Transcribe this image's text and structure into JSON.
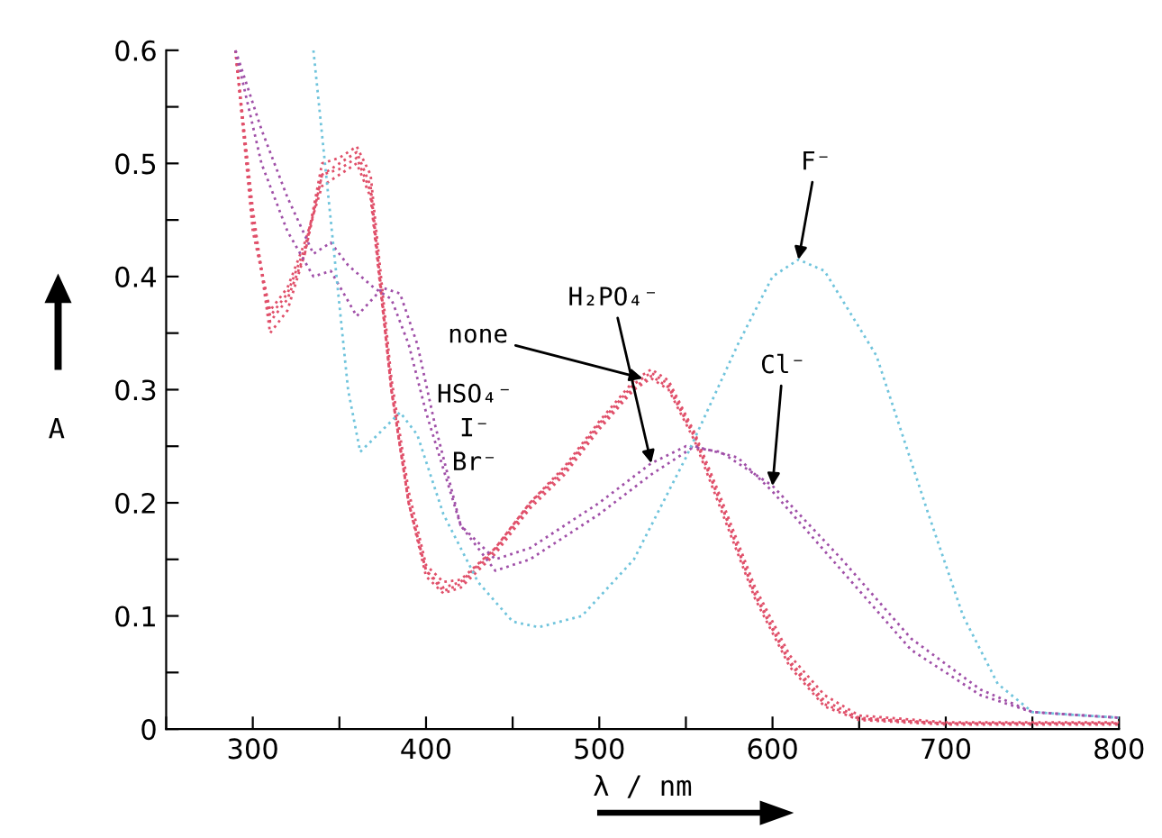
{
  "chart_data": {
    "type": "line",
    "xlabel": "λ / nm",
    "ylabel": "A",
    "xlim": [
      250,
      800
    ],
    "ylim": [
      0,
      0.6
    ],
    "xticks": [
      {
        "value": 250,
        "label": null
      },
      300,
      {
        "value": 350,
        "label": null
      },
      400,
      {
        "value": 450,
        "label": null
      },
      500,
      {
        "value": 550,
        "label": null
      },
      600,
      {
        "value": 650,
        "label": null
      },
      700,
      {
        "value": 750,
        "label": null
      },
      800
    ],
    "yticks": [
      0,
      {
        "value": 0.05,
        "label": null
      },
      0.1,
      {
        "value": 0.15,
        "label": null
      },
      0.2,
      {
        "value": 0.25,
        "label": null
      },
      0.3,
      {
        "value": 0.35,
        "label": null
      },
      0.4,
      {
        "value": 0.45,
        "label": null
      },
      0.5,
      {
        "value": 0.55,
        "label": null
      },
      0.6
    ],
    "grid": false,
    "marker": "none",
    "line_style": "dotted",
    "series": [
      {
        "color": "#e0506a",
        "x": [
          290,
          300,
          310,
          320,
          330,
          340,
          350,
          360,
          368,
          380,
          390,
          400,
          410,
          420,
          440,
          460,
          480,
          500,
          520,
          530,
          540,
          555,
          570,
          590,
          610,
          630,
          650,
          700,
          800
        ],
        "values": [
          0.6,
          0.45,
          0.36,
          0.38,
          0.42,
          0.49,
          0.5,
          0.51,
          0.48,
          0.3,
          0.2,
          0.14,
          0.125,
          0.13,
          0.16,
          0.2,
          0.23,
          0.27,
          0.305,
          0.315,
          0.305,
          0.26,
          0.2,
          0.12,
          0.06,
          0.025,
          0.01,
          0.005,
          0.005
        ]
      },
      {
        "color": "#e0506a",
        "x": [
          290,
          300,
          310,
          320,
          330,
          340,
          350,
          360,
          368,
          380,
          390,
          400,
          410,
          420,
          440,
          460,
          480,
          500,
          520,
          530,
          540,
          555,
          570,
          590,
          610,
          630,
          650,
          700,
          800
        ],
        "values": [
          0.6,
          0.44,
          0.37,
          0.39,
          0.43,
          0.48,
          0.49,
          0.5,
          0.47,
          0.3,
          0.2,
          0.135,
          0.12,
          0.125,
          0.155,
          0.195,
          0.225,
          0.265,
          0.3,
          0.31,
          0.3,
          0.255,
          0.195,
          0.115,
          0.055,
          0.02,
          0.008,
          0.004,
          0.004
        ]
      },
      {
        "color": "#e0506a",
        "x": [
          290,
          300,
          310,
          320,
          330,
          340,
          350,
          360,
          368,
          380,
          390,
          400,
          410,
          420,
          440,
          460,
          480,
          500,
          520,
          530,
          540,
          555,
          570,
          590,
          610,
          630,
          650,
          700,
          800
        ],
        "values": [
          0.6,
          0.46,
          0.35,
          0.37,
          0.42,
          0.5,
          0.505,
          0.515,
          0.49,
          0.31,
          0.21,
          0.145,
          0.13,
          0.132,
          0.16,
          0.2,
          0.232,
          0.272,
          0.308,
          0.318,
          0.308,
          0.262,
          0.205,
          0.125,
          0.065,
          0.03,
          0.012,
          0.006,
          0.006
        ]
      },
      {
        "color": "#e0506a",
        "x": [
          290,
          300,
          310,
          320,
          330,
          340,
          350,
          360,
          368,
          380,
          390,
          400,
          410,
          420,
          440,
          460,
          480,
          500,
          520,
          530,
          540,
          555,
          570,
          590,
          610,
          630,
          650,
          700,
          800
        ],
        "values": [
          0.6,
          0.45,
          0.365,
          0.385,
          0.425,
          0.49,
          0.495,
          0.505,
          0.475,
          0.3,
          0.2,
          0.14,
          0.122,
          0.128,
          0.158,
          0.198,
          0.228,
          0.268,
          0.302,
          0.312,
          0.302,
          0.258,
          0.2,
          0.118,
          0.058,
          0.022,
          0.009,
          0.005,
          0.005
        ]
      },
      {
        "color": "#a050a8",
        "x": [
          290,
          305,
          320,
          335,
          345,
          355,
          370,
          380,
          390,
          400,
          420,
          440,
          460,
          480,
          500,
          530,
          550,
          570,
          600,
          640,
          680,
          720,
          750,
          800
        ],
        "values": [
          0.6,
          0.53,
          0.47,
          0.42,
          0.43,
          0.41,
          0.39,
          0.38,
          0.34,
          0.28,
          0.18,
          0.15,
          0.16,
          0.18,
          0.2,
          0.235,
          0.25,
          0.245,
          0.215,
          0.15,
          0.08,
          0.035,
          0.015,
          0.01
        ]
      },
      {
        "color": "#a050a8",
        "x": [
          290,
          305,
          320,
          335,
          345,
          360,
          375,
          385,
          395,
          405,
          420,
          440,
          460,
          480,
          500,
          530,
          555,
          580,
          600,
          640,
          680,
          720,
          750,
          800
        ],
        "values": [
          0.6,
          0.5,
          0.44,
          0.4,
          0.405,
          0.365,
          0.39,
          0.385,
          0.34,
          0.27,
          0.18,
          0.14,
          0.15,
          0.17,
          0.19,
          0.225,
          0.25,
          0.24,
          0.21,
          0.14,
          0.07,
          0.03,
          0.015,
          0.01
        ]
      },
      {
        "color": "#70c4dc",
        "x": [
          335,
          345,
          355,
          362,
          372,
          385,
          395,
          410,
          430,
          450,
          465,
          490,
          520,
          550,
          580,
          600,
          615,
          630,
          660,
          690,
          710,
          730,
          750,
          800
        ],
        "values": [
          0.6,
          0.45,
          0.3,
          0.245,
          0.26,
          0.28,
          0.26,
          0.19,
          0.13,
          0.095,
          0.09,
          0.1,
          0.15,
          0.24,
          0.34,
          0.4,
          0.415,
          0.405,
          0.33,
          0.19,
          0.1,
          0.04,
          0.015,
          0.01
        ]
      }
    ],
    "annotations": [
      {
        "text": "none",
        "x": 525,
        "y": 0.31
      },
      "HSO₄⁻",
      "I⁻",
      "Br⁻",
      {
        "text": "H₂PO₄⁻",
        "x": 530,
        "y": 0.235
      },
      {
        "text": "Cl⁻",
        "x": 600,
        "y": 0.215
      },
      {
        "text": "F⁻",
        "x": 615,
        "y": 0.415
      }
    ]
  }
}
